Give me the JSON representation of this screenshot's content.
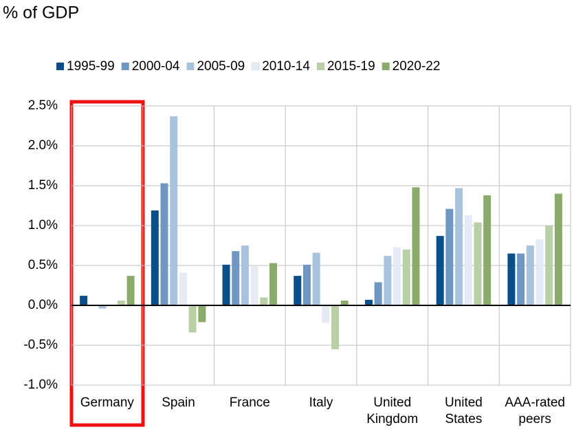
{
  "chart_data": {
    "type": "bar",
    "title": "% of GDP",
    "categories": [
      "Germany",
      "Spain",
      "France",
      "Italy",
      "United Kingdom",
      "United States",
      "AAA-rated peers"
    ],
    "series": [
      {
        "name": "1995-99",
        "color": "#0b4f8a",
        "values": [
          0.12,
          1.19,
          0.51,
          0.37,
          0.07,
          0.87,
          0.65
        ]
      },
      {
        "name": "2000-04",
        "color": "#6f97c1",
        "values": [
          0,
          1.53,
          0.68,
          0.51,
          0.29,
          1.21,
          0.65
        ]
      },
      {
        "name": "2005-09",
        "color": "#a9c3dc",
        "values": [
          -0.04,
          2.37,
          0.75,
          0.66,
          0.62,
          1.47,
          0.75
        ]
      },
      {
        "name": "2010-14",
        "color": "#e4ebf4",
        "values": [
          0,
          0.41,
          0.49,
          -0.22,
          0.73,
          1.13,
          0.83
        ]
      },
      {
        "name": "2015-19",
        "color": "#b9cfa5",
        "values": [
          0.06,
          -0.34,
          0.1,
          -0.55,
          0.7,
          1.04,
          1.0
        ]
      },
      {
        "name": "2020-22",
        "color": "#8aab6c",
        "values": [
          0.37,
          -0.21,
          0.53,
          0.06,
          1.48,
          1.38,
          1.4
        ]
      }
    ],
    "ylim": [
      -1.0,
      2.5
    ],
    "yticks": [
      {
        "value": -1.0,
        "label": "-1.0%"
      },
      {
        "value": -0.5,
        "label": "-0.5%"
      },
      {
        "value": 0,
        "label": "0.0%"
      },
      {
        "value": 0.5,
        "label": "0.5%"
      },
      {
        "value": 1.0,
        "label": "1.0%"
      },
      {
        "value": 1.5,
        "label": "1.5%"
      },
      {
        "value": 2.0,
        "label": "2.0%"
      },
      {
        "value": 2.5,
        "label": "2.5%"
      }
    ],
    "grid": true
  }
}
